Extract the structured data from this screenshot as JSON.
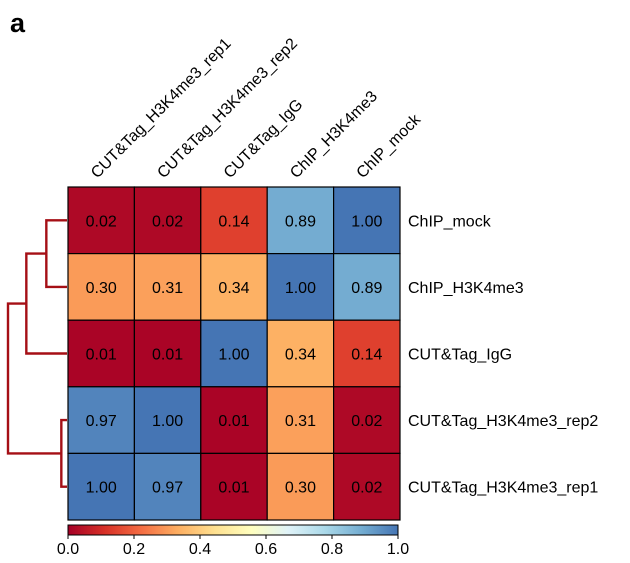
{
  "panel_label": "a",
  "chart_data": {
    "type": "heatmap",
    "columns": [
      "CUT&Tag_H3K4me3_rep1",
      "CUT&Tag_H3K4me3_rep2",
      "CUT&Tag_IgG",
      "ChIP_H3K4me3",
      "ChIP_mock"
    ],
    "rows": [
      "ChIP_mock",
      "ChIP_H3K4me3",
      "CUT&Tag_IgG",
      "CUT&Tag_H3K4me3_rep2",
      "CUT&Tag_H3K4me3_rep1"
    ],
    "values": [
      [
        0.02,
        0.02,
        0.14,
        0.89,
        1.0
      ],
      [
        0.3,
        0.31,
        0.34,
        1.0,
        0.89
      ],
      [
        0.01,
        0.01,
        1.0,
        0.34,
        0.14
      ],
      [
        0.97,
        1.0,
        0.01,
        0.31,
        0.02
      ],
      [
        1.0,
        0.97,
        0.01,
        0.3,
        0.02
      ]
    ],
    "value_labels": [
      [
        "0.02",
        "0.02",
        "0.14",
        "0.89",
        "1.00"
      ],
      [
        "0.30",
        "0.31",
        "0.34",
        "1.00",
        "0.89"
      ],
      [
        "0.01",
        "0.01",
        "1.00",
        "0.34",
        "0.14"
      ],
      [
        "0.97",
        "1.00",
        "0.01",
        "0.31",
        "0.02"
      ],
      [
        "1.00",
        "0.97",
        "0.01",
        "0.30",
        "0.02"
      ]
    ],
    "colorbar": {
      "range": [
        0.0,
        1.0
      ],
      "ticks": [
        "0.0",
        "0.2",
        "0.4",
        "0.6",
        "0.8",
        "1.0"
      ],
      "colors": [
        "#a50026",
        "#d73027",
        "#f46d43",
        "#fdae61",
        "#fee090",
        "#ffffbf",
        "#e0f3f8",
        "#abd9e9",
        "#74add1",
        "#4575b4"
      ]
    },
    "dendrogram": {
      "side": "left",
      "color": "#a50f15",
      "merges": [
        {
          "a": 0,
          "b": 1,
          "height": 0.3
        },
        {
          "a": 3,
          "b": 4,
          "height": 0.03
        },
        {
          "a": "m0",
          "b": 2,
          "height": 0.66
        },
        {
          "a": "m2",
          "b": "m1",
          "height": 0.99
        }
      ]
    }
  }
}
